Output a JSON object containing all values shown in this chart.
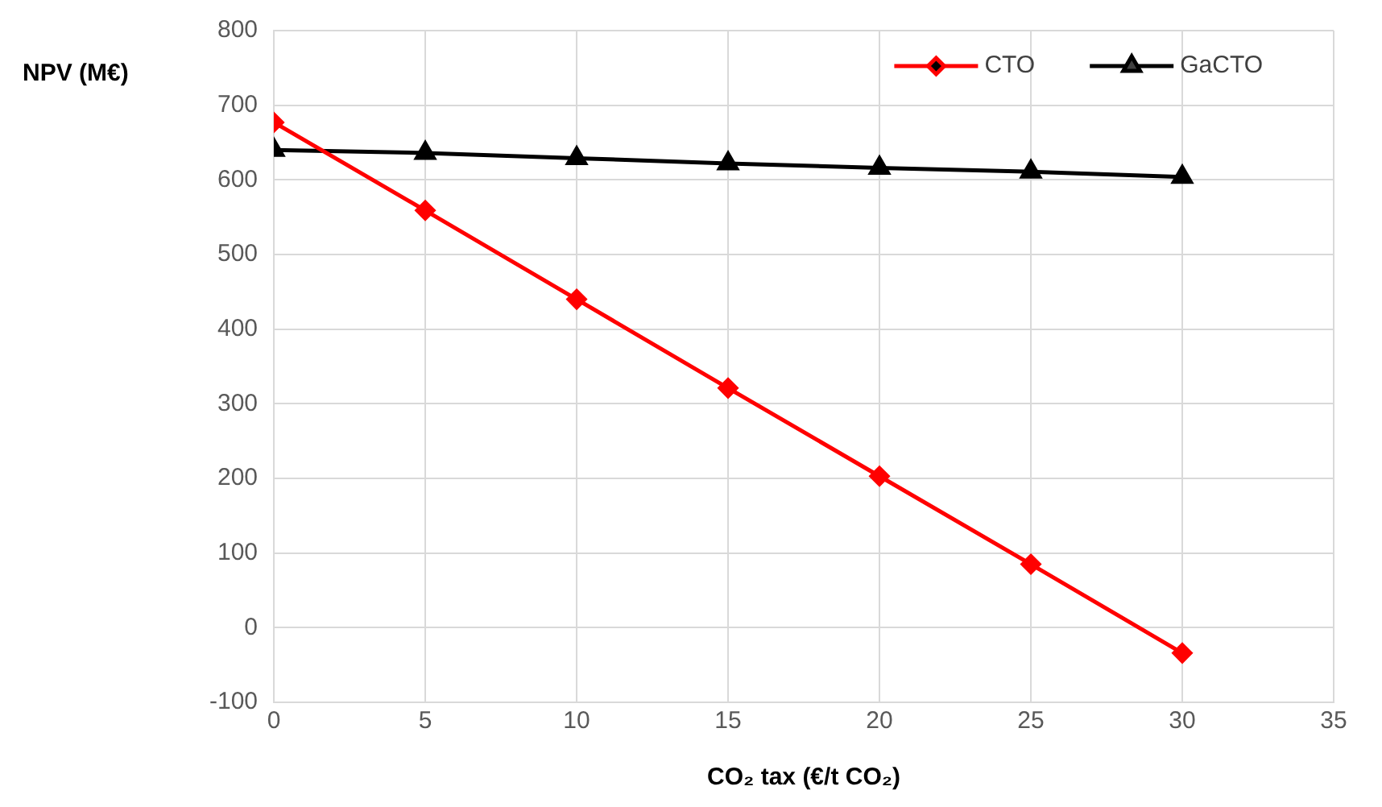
{
  "chart_data": {
    "type": "line",
    "xlabel": "CO₂ tax (€/t CO₂)",
    "ylabel": "NPV (M€)",
    "x": [
      0,
      5,
      10,
      15,
      20,
      25,
      30
    ],
    "series": [
      {
        "name": "CTO",
        "color": "#ff0000",
        "marker": "diamond",
        "values": [
          677,
          559,
          440,
          321,
          203,
          85,
          -34
        ]
      },
      {
        "name": "GaCTO",
        "color": "#000000",
        "marker": "triangle",
        "values": [
          640,
          636,
          629,
          622,
          616,
          611,
          604
        ]
      }
    ],
    "xlim": [
      0,
      35
    ],
    "xticks": [
      0,
      5,
      10,
      15,
      20,
      25,
      30,
      35
    ],
    "ylim": [
      -100,
      800
    ],
    "yticks": [
      -100,
      0,
      100,
      200,
      300,
      400,
      500,
      600,
      700,
      800
    ],
    "grid": true,
    "legend": "top right",
    "line_style": "solid"
  }
}
